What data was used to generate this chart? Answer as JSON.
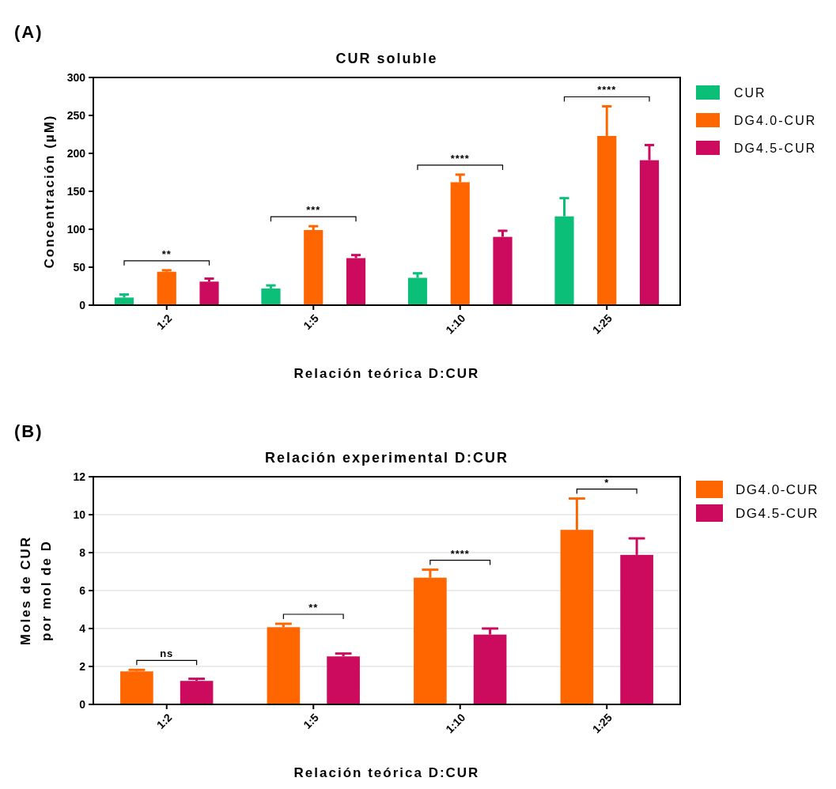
{
  "chart_data": [
    {
      "type": "bar",
      "title": "CUR soluble",
      "xlabel": "Relación teórica D:CUR",
      "ylabel": "Concentración (µM)",
      "categories": [
        "1:2",
        "1:5",
        "1:10",
        "1:25"
      ],
      "ylim": [
        0,
        300
      ],
      "yticks": [
        0,
        50,
        100,
        150,
        200,
        250,
        300
      ],
      "grid": false,
      "legend": "top right",
      "series": [
        {
          "name": "CUR",
          "color": "#0bbf78",
          "values": [
            10,
            22,
            36,
            117
          ],
          "errors": [
            [
              10,
              14
            ],
            [
              22,
              26
            ],
            [
              36,
              42
            ],
            [
              117,
              141
            ]
          ]
        },
        {
          "name": "DG4.0-CUR",
          "color": "#ff6600",
          "values": [
            44,
            99,
            162,
            223
          ],
          "errors": [
            [
              44,
              46
            ],
            [
              99,
              104
            ],
            [
              162,
              172
            ],
            [
              223,
              262
            ]
          ]
        },
        {
          "name": "DG4.5-CUR",
          "color": "#cc0a5e",
          "values": [
            31,
            62,
            90,
            191
          ],
          "errors": [
            [
              31,
              35
            ],
            [
              62,
              66
            ],
            [
              90,
              98
            ],
            [
              191,
              211
            ]
          ]
        }
      ],
      "annotations": [
        "(A)",
        "**",
        "***",
        "****",
        "****"
      ]
    },
    {
      "type": "bar",
      "title": "Relación experimental D:CUR",
      "xlabel": "Relación teórica D:CUR",
      "ylabel": "Moles de CUR\npor mol de D",
      "categories": [
        "1:2",
        "1:5",
        "1:10",
        "1:25"
      ],
      "ylim": [
        0,
        12
      ],
      "yticks": [
        0,
        2,
        4,
        6,
        8,
        10,
        12
      ],
      "grid": "y",
      "legend": "top right",
      "series": [
        {
          "name": "DG4.0-CUR",
          "color": "#ff6600",
          "values": [
            1.74,
            4.07,
            6.68,
            9.2
          ],
          "errors": [
            [
              1.74,
              1.82
            ],
            [
              4.07,
              4.25
            ],
            [
              6.68,
              7.1
            ],
            [
              9.2,
              10.85
            ]
          ]
        },
        {
          "name": "DG4.5-CUR",
          "color": "#cc0a5e",
          "values": [
            1.24,
            2.53,
            3.68,
            7.88
          ],
          "errors": [
            [
              1.24,
              1.35
            ],
            [
              2.53,
              2.68
            ],
            [
              3.68,
              4.0
            ],
            [
              7.88,
              8.75
            ]
          ]
        }
      ],
      "annotations": [
        "(B)",
        "ns",
        "**",
        "****",
        "*"
      ]
    }
  ]
}
